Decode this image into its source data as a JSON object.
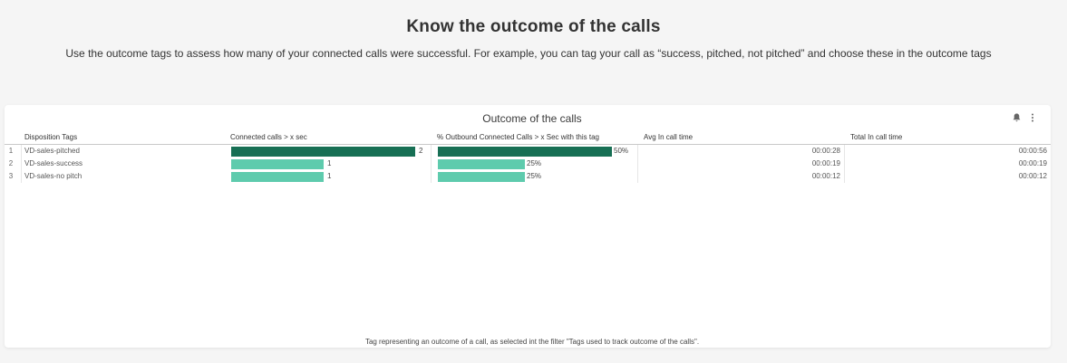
{
  "page": {
    "title": "Know the outcome of the calls",
    "subtitle": "Use the outcome tags to assess how many of your connected calls were successful. For example, you can tag your call as “success, pitched, not pitched” and choose these in the outcome tags"
  },
  "card": {
    "title": "Outcome of the calls",
    "icons": [
      "bell-icon",
      "more-vertical-icon"
    ],
    "footnote": "Tag representing an outcome of a call, as selected int the filter \"Tags used to track outcome of the calls\"."
  },
  "table": {
    "columns": {
      "tag": "Disposition Tags",
      "connected": "Connected calls > x sec",
      "percent": "% Outbound Connected Calls > x Sec with this tag",
      "avg": "Avg In call time",
      "total": "Total In call time"
    },
    "rows": [
      {
        "num": "1",
        "tag": "VD-sales-pitched",
        "connected": 2,
        "connected_label": "2",
        "percent": 50,
        "percent_label": "50%",
        "avg": "00:00:28",
        "total": "00:00:56"
      },
      {
        "num": "2",
        "tag": "VD-sales-success",
        "connected": 1,
        "connected_label": "1",
        "percent": 25,
        "percent_label": "25%",
        "avg": "00:00:19",
        "total": "00:00:19"
      },
      {
        "num": "3",
        "tag": "VD-sales-no pitch",
        "connected": 1,
        "connected_label": "1",
        "percent": 25,
        "percent_label": "25%",
        "avg": "00:00:12",
        "total": "00:00:12"
      }
    ],
    "max_connected": 2,
    "max_percent": 50
  },
  "colors": {
    "bar_high": "#176f54",
    "bar_normal": "#5ecbad"
  }
}
